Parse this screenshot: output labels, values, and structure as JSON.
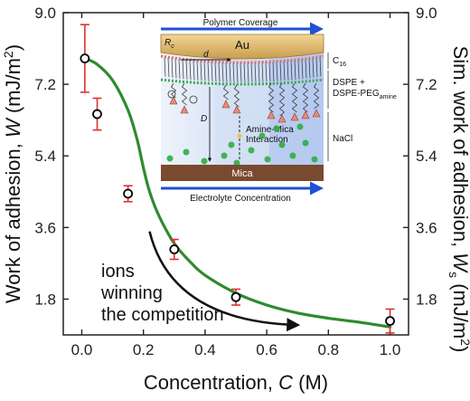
{
  "chart_data": {
    "type": "scatter",
    "x_ticks": [
      "0.0",
      "0.2",
      "0.4",
      "0.6",
      "0.8",
      "1.0"
    ],
    "y_ticks": [
      "1.8",
      "3.6",
      "5.4",
      "7.2",
      "9.0"
    ],
    "y2_ticks": [
      "1.8",
      "3.6",
      "5.4",
      "7.2",
      "9.0"
    ],
    "xlim": [
      -0.06,
      1.06
    ],
    "ylim": [
      0.9,
      9.0
    ],
    "xlabel": {
      "prefix": "Concentration, ",
      "var": "C",
      "suffix": " (M)"
    },
    "ylabel": {
      "prefix": "Work of adhesion, ",
      "var": "W",
      "suffix": " (mJ/m",
      "sup": "2",
      "end": ")"
    },
    "y2label": {
      "prefix": "Sim. work of adhesion, ",
      "var": "W",
      "sub": "s",
      "suffix": " (mJ/m",
      "sup": "2",
      "end": ")"
    },
    "series": [
      {
        "kind": "experimental",
        "marker": "open-circle",
        "color": "#000000",
        "error_color": "#e03030",
        "x": [
          0.01,
          0.05,
          0.15,
          0.3,
          0.5,
          1.0
        ],
        "y": [
          7.85,
          6.45,
          4.45,
          3.05,
          1.85,
          1.25
        ],
        "err": [
          0.85,
          0.4,
          0.2,
          0.25,
          0.2,
          0.3
        ]
      },
      {
        "kind": "simulation",
        "color": "#2e8b2e",
        "x": [
          0.01,
          0.05,
          0.1,
          0.15,
          0.18,
          0.2,
          0.22,
          0.25,
          0.3,
          0.35,
          0.4,
          0.5,
          0.6,
          0.7,
          0.8,
          0.9,
          1.0
        ],
        "y": [
          7.85,
          7.7,
          7.3,
          6.55,
          5.8,
          5.1,
          4.5,
          3.9,
          3.2,
          2.75,
          2.4,
          1.95,
          1.65,
          1.45,
          1.32,
          1.22,
          1.1
        ]
      }
    ],
    "annotation": {
      "lines": [
        "ions",
        "winning",
        "the competition"
      ],
      "arrow_from": [
        0.22,
        3.5
      ],
      "arrow_to": [
        0.7,
        1.15
      ]
    }
  },
  "inset": {
    "top_label": "Polymer Coverage",
    "bottom_label": "Electrolyte Concentration",
    "au_label": "Au",
    "mica_label": "Mica",
    "rc_label": "R",
    "rc_sub": "c",
    "d_label": "d",
    "D_label": "D",
    "interaction_label": [
      "Amine-Mica",
      "Interaction"
    ],
    "c16_label": "C",
    "c16_sub": "16",
    "dspe_label": [
      "DSPE +",
      "DSPE-PEG"
    ],
    "dspe_sub": "amine",
    "nacl_label": "NaCl",
    "colors": {
      "arrow": "#1f4fd6",
      "au": "#d9b56a",
      "mica": "#7a4a2e",
      "ion": "#2fae3f",
      "amine": "#e88a78",
      "bg": "#dfe8f7"
    }
  }
}
